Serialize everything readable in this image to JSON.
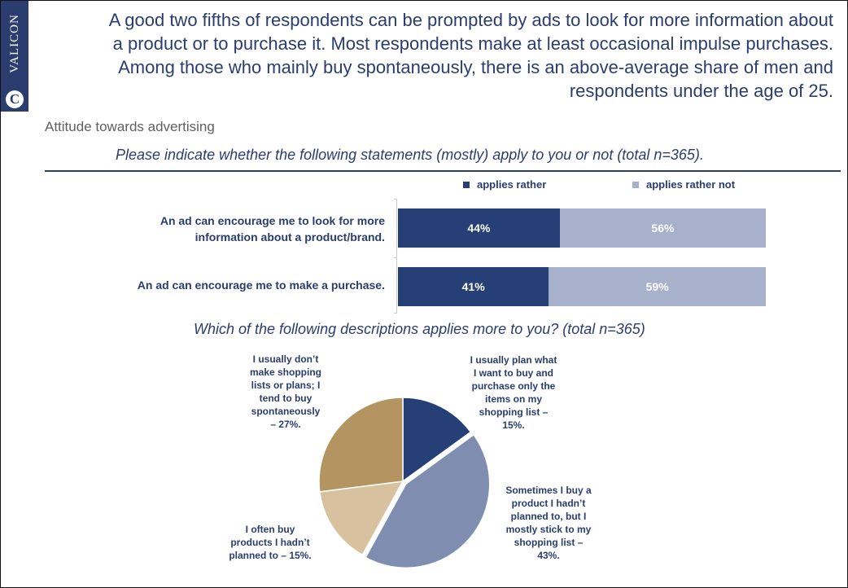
{
  "brand": {
    "name": "VALICON",
    "logo_letter": "C"
  },
  "headline": {
    "lines": [
      "A good two fifths of respondents can be prompted by ads to look for more information about",
      "a product or to purchase it.  Most respondents make at least occasional impulse purchases.",
      "Among those who mainly buy spontaneously, there is an above-average share of men and",
      "respondents under the age of 25."
    ]
  },
  "section_title": "Attitude towards advertising",
  "question1": "Please indicate whether the following statements (mostly) apply to you or not (total n=365).",
  "question2": "Which of the following descriptions applies more to you? (total n=365)",
  "colors": {
    "navy": "#2a3d6e",
    "applies_rather": "#273f77",
    "applies_rather_not": "#a8b1cb",
    "pie_plan": "#273f77",
    "pie_sometimes": "#7f8db0",
    "pie_often": "#d7c19e",
    "pie_spontaneous": "#b49460"
  },
  "chart_data": [
    {
      "type": "bar",
      "orientation": "horizontal",
      "stacked": true,
      "series": [
        {
          "name": "applies rather",
          "values": [
            44,
            41
          ],
          "labels": [
            "44%",
            "41%"
          ]
        },
        {
          "name": "applies rather not",
          "values": [
            56,
            59
          ],
          "labels": [
            "56%",
            "59%"
          ]
        }
      ],
      "categories": [
        [
          "An ad can encourage me to look for more",
          "information about a product/brand."
        ],
        [
          "An ad can encourage me to make a purchase."
        ]
      ],
      "legend_position": "top-right"
    },
    {
      "type": "pie",
      "slices": [
        {
          "value": 15,
          "label_lines": [
            "I usually plan what",
            "I want to buy and",
            "purchase only the",
            "items on my",
            "shopping list –",
            "15%."
          ]
        },
        {
          "value": 43,
          "label_lines": [
            "Sometimes I buy a",
            "product I hadn’t",
            "planned to, but I",
            "mostly stick to my",
            "shopping list –",
            "43%."
          ]
        },
        {
          "value": 15,
          "label_lines": [
            "I often buy",
            "products I hadn’t",
            "planned to – 15%."
          ]
        },
        {
          "value": 27,
          "label_lines": [
            "I usually don’t",
            "make shopping",
            "lists or plans; I",
            "tend to buy",
            "spontaneously",
            "– 27%."
          ]
        }
      ]
    }
  ]
}
